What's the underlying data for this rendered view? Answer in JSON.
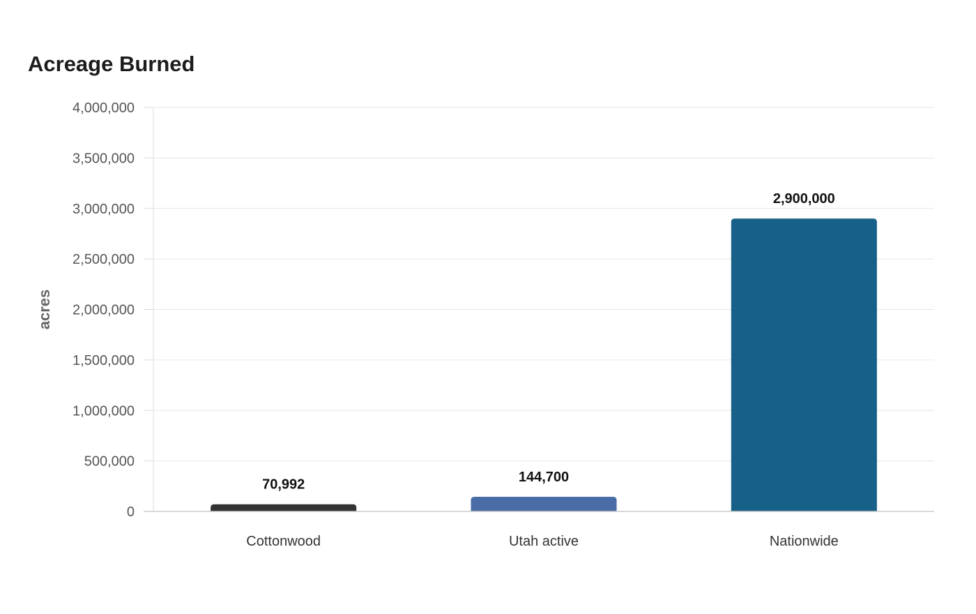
{
  "chart_data": {
    "type": "bar",
    "title": "Acreage Burned",
    "xlabel": "",
    "ylabel": "acres",
    "categories": [
      "Cottonwood",
      "Utah active",
      "Nationwide"
    ],
    "values": [
      70992,
      144700,
      2900000
    ],
    "value_labels": [
      "70,992",
      "144,700",
      "2,900,000"
    ],
    "colors": [
      "#333333",
      "#4a6da7",
      "#176087"
    ],
    "ylim": [
      0,
      4000000
    ],
    "yticks": [
      0,
      500000,
      1000000,
      1500000,
      2000000,
      2500000,
      3000000,
      3500000,
      4000000
    ],
    "ytick_labels": [
      "0",
      "500,000",
      "1,000,000",
      "1,500,000",
      "2,000,000",
      "2,500,000",
      "3,000,000",
      "3,500,000",
      "4,000,000"
    ],
    "grid": true,
    "legend": "none"
  }
}
